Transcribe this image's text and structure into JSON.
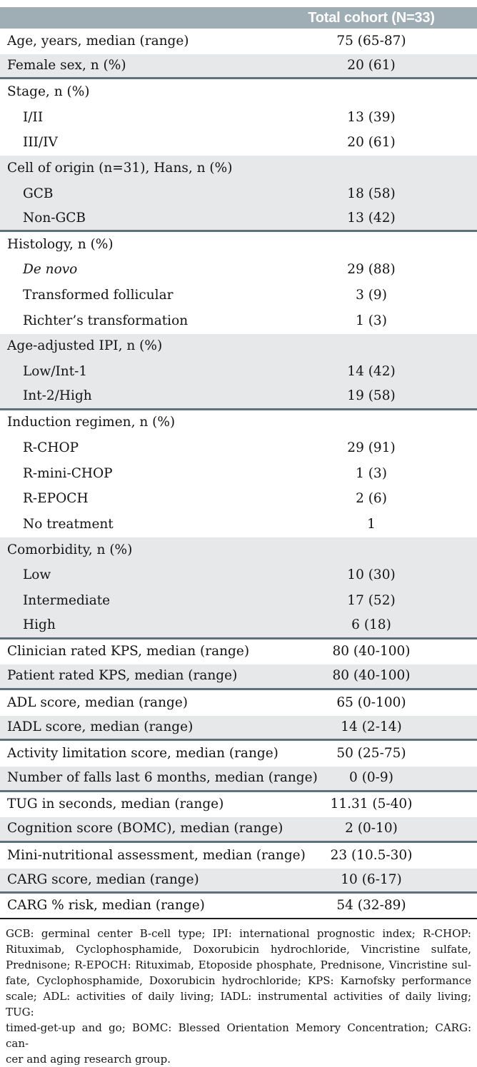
{
  "table": {
    "header": {
      "value_col": "Total cohort (N=33)"
    },
    "rows": [
      {
        "label": "Age, years, median (range)",
        "value": "75 (65-87)",
        "shade": "white"
      },
      {
        "label": "Female sex, n (%)",
        "value": "20 (61)",
        "shade": "gray",
        "sep": true
      },
      {
        "label": "Stage, n (%)",
        "value": "",
        "shade": "white"
      },
      {
        "label": "I/II",
        "value": "13 (39)",
        "shade": "white",
        "indent": true
      },
      {
        "label": "III/IV",
        "value": "20 (61)",
        "shade": "white",
        "indent": true
      },
      {
        "label": "Cell of origin (n=31), Hans, n (%)",
        "value": "",
        "shade": "gray"
      },
      {
        "label": "GCB",
        "value": "18 (58)",
        "shade": "gray",
        "indent": true
      },
      {
        "label": "Non-GCB",
        "value": "13 (42)",
        "shade": "gray",
        "indent": true,
        "sep": true
      },
      {
        "label": "Histology, n (%)",
        "value": "",
        "shade": "white"
      },
      {
        "label": "De novo",
        "value": "29 (88)",
        "shade": "white",
        "indent": true,
        "italic": true
      },
      {
        "label": "Transformed follicular",
        "value": "3 (9)",
        "shade": "white",
        "indent": true
      },
      {
        "label": "Richter’s transformation",
        "value": "1 (3)",
        "shade": "white",
        "indent": true
      },
      {
        "label": "Age-adjusted IPI, n (%)",
        "value": "",
        "shade": "gray"
      },
      {
        "label": "Low/Int-1",
        "value": "14 (42)",
        "shade": "gray",
        "indent": true
      },
      {
        "label": "Int-2/High",
        "value": "19 (58)",
        "shade": "gray",
        "indent": true,
        "sep": true
      },
      {
        "label": "Induction regimen, n (%)",
        "value": "",
        "shade": "white"
      },
      {
        "label": "R-CHOP",
        "value": "29 (91)",
        "shade": "white",
        "indent": true
      },
      {
        "label": "R-mini-CHOP",
        "value": "1 (3)",
        "shade": "white",
        "indent": true
      },
      {
        "label": "R-EPOCH",
        "value": "2 (6)",
        "shade": "white",
        "indent": true
      },
      {
        "label": "No treatment",
        "value": "1",
        "shade": "white",
        "indent": true
      },
      {
        "label": "Comorbidity, n (%)",
        "value": "",
        "shade": "gray"
      },
      {
        "label": "Low",
        "value": "10 (30)",
        "shade": "gray",
        "indent": true
      },
      {
        "label": "Intermediate",
        "value": "17 (52)",
        "shade": "gray",
        "indent": true
      },
      {
        "label": "High",
        "value": "6 (18)",
        "shade": "gray",
        "indent": true,
        "sep": true
      },
      {
        "label": "Clinician rated KPS, median (range)",
        "value": "80 (40-100)",
        "shade": "white"
      },
      {
        "label": "Patient rated KPS, median (range)",
        "value": "80 (40-100)",
        "shade": "gray",
        "sep": true
      },
      {
        "label": "ADL score, median (range)",
        "value": "65 (0-100)",
        "shade": "white"
      },
      {
        "label": "IADL score, median (range)",
        "value": "14 (2-14)",
        "shade": "gray",
        "sep": true
      },
      {
        "label": "Activity limitation score, median (range)",
        "value": "50 (25-75)",
        "shade": "white"
      },
      {
        "label": "Number of falls last 6 months, median (range)",
        "value": "0 (0-9)",
        "shade": "gray",
        "sep": true
      },
      {
        "label": "TUG in seconds, median (range)",
        "value": "11.31 (5-40)",
        "shade": "white"
      },
      {
        "label": "Cognition score (BOMC), median (range)",
        "value": "2 (0-10)",
        "shade": "gray",
        "sep": true
      },
      {
        "label": "Mini-nutritional assessment, median (range)",
        "value": "23 (10.5-30)",
        "shade": "white"
      },
      {
        "label": "CARG score, median (range)",
        "value": "10 (6-17)",
        "shade": "gray",
        "sep": true
      },
      {
        "label": "CARG % risk, median (range)",
        "value": "54 (32-89)",
        "shade": "white",
        "bottom": true
      }
    ]
  },
  "footnote_lines": [
    "GCB: germinal center B-cell type; IPI: international prognostic index; R-CHOP:",
    "Rituximab, Cyclophosphamide, Doxorubicin hydrochloride, Vincristine sulfate,",
    "Prednisone; R-EPOCH: Rituximab, Etoposide phosphate, Prednisone, Vincristine sul-",
    "fate, Cyclophosphamide, Doxorubicin hydrochloride; KPS: Karnofsky performance",
    "scale; ADL: activities of daily living; IADL: instrumental activities of daily living; TUG:",
    "timed-get-up and go; BOMC: Blessed Orientation Memory Concentration; CARG: can-",
    "cer and aging research group."
  ],
  "colors": {
    "header_bg": "#9fadb5",
    "row_gray": "#e6e8e9",
    "separator": "#5e717b",
    "bottom_rule": "#1e1e1e",
    "header_text": "#ffffff"
  }
}
